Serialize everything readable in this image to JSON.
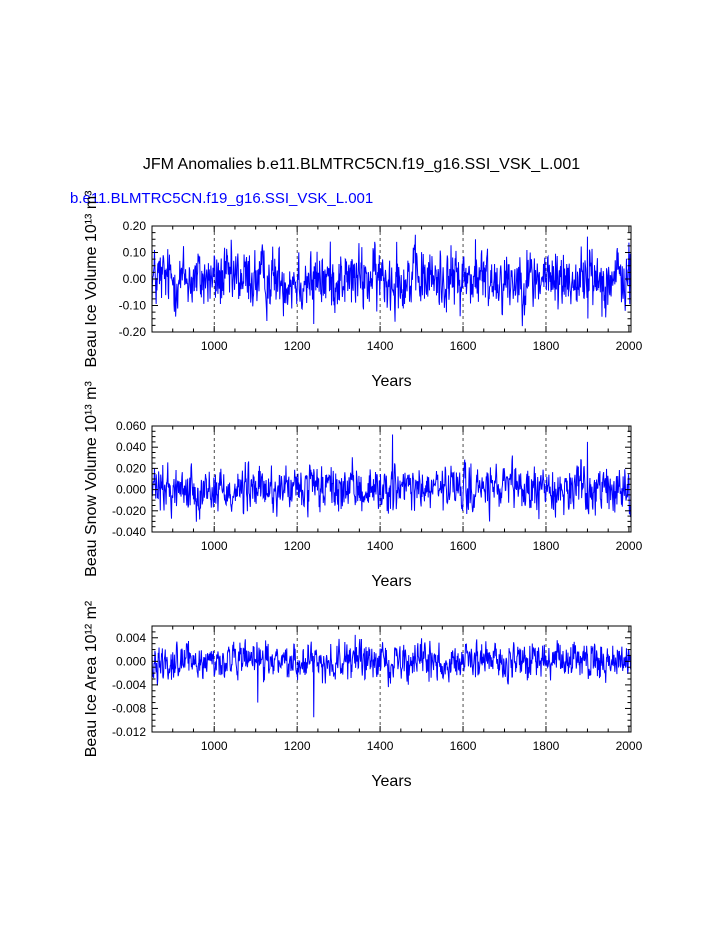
{
  "title": "JFM Anomalies b.e11.BLMTRC5CN.f19_g16.SSI_VSK_L.001",
  "subtitle": "b.e11.BLMTRC5CN.f19_g16.SSI_VSK_L.001",
  "colors": {
    "line": "#0000ff",
    "axis": "#000000",
    "gridline": "#000000",
    "subtitle": "#0000ff"
  },
  "chart_data": [
    {
      "type": "line",
      "ylabel": "Beau Ice Volume 10¹³ m³",
      "xlabel": "Years",
      "xlim": [
        850,
        2005
      ],
      "ylim": [
        -0.2,
        0.2
      ],
      "xticks": [
        1000,
        1200,
        1400,
        1600,
        1800,
        2000
      ],
      "yticks": [
        "-0.20",
        "-0.10",
        "0.00",
        "0.10",
        "0.20"
      ],
      "ytick_values": [
        -0.2,
        -0.1,
        0.0,
        0.1,
        0.2
      ],
      "vertical_reference_lines": [
        1000,
        1200,
        1400,
        1600,
        1800
      ],
      "series": [
        {
          "amplitude": 0.055,
          "extremes": [
            [
              1240,
              -0.17
            ],
            [
              1440,
              0.14
            ],
            [
              1630,
              0.15
            ],
            [
              1900,
              0.16
            ]
          ]
        }
      ]
    },
    {
      "type": "line",
      "ylabel": "Beau Snow Volume 10¹³ m³",
      "xlabel": "Years",
      "xlim": [
        850,
        2005
      ],
      "ylim": [
        -0.04,
        0.06
      ],
      "xticks": [
        1000,
        1200,
        1400,
        1600,
        1800,
        2000
      ],
      "yticks": [
        "-0.040",
        "-0.020",
        "0.000",
        "0.020",
        "0.040",
        "0.060"
      ],
      "ytick_values": [
        -0.04,
        -0.02,
        0.0,
        0.02,
        0.04,
        0.06
      ],
      "vertical_reference_lines": [
        1000,
        1200,
        1400,
        1600,
        1800
      ],
      "series": [
        {
          "amplitude": 0.01,
          "extremes": [
            [
              1430,
              0.052
            ],
            [
              1900,
              0.045
            ],
            [
              1070,
              -0.022
            ]
          ]
        }
      ]
    },
    {
      "type": "line",
      "ylabel": "Beau Ice Area 10¹² m²",
      "xlabel": "Years",
      "xlim": [
        850,
        2005
      ],
      "ylim": [
        -0.012,
        0.006
      ],
      "xticks": [
        1000,
        1200,
        1400,
        1600,
        1800,
        2000
      ],
      "yticks": [
        "-0.012",
        "-0.008",
        "-0.004",
        "0.000",
        "0.004"
      ],
      "ytick_values": [
        -0.012,
        -0.008,
        -0.004,
        0.0,
        0.004
      ],
      "vertical_reference_lines": [
        1000,
        1200,
        1400,
        1600,
        1800
      ],
      "series": [
        {
          "amplitude": 0.0014,
          "extremes": [
            [
              1240,
              -0.0095
            ],
            [
              1105,
              -0.007
            ],
            [
              1340,
              0.0045
            ]
          ]
        }
      ]
    }
  ]
}
